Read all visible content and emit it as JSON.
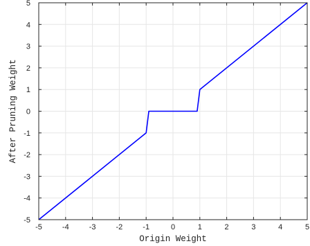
{
  "chart_data": {
    "type": "line",
    "xlabel": "Origin Weight",
    "ylabel": "After Pruning Weight",
    "xlim": [
      -5,
      5
    ],
    "ylim": [
      -5,
      5
    ],
    "xticks": [
      -5,
      -4,
      -3,
      -2,
      -1,
      0,
      1,
      2,
      3,
      4,
      5
    ],
    "yticks": [
      -5,
      -4,
      -3,
      -2,
      -1,
      0,
      1,
      2,
      3,
      4,
      5
    ],
    "grid": true,
    "series": [
      {
        "color": "#0000ff",
        "x": [
          -5,
          -1,
          -0.9,
          0.9,
          1,
          5
        ],
        "y": [
          -5,
          -1,
          0,
          0,
          1,
          5
        ]
      }
    ]
  }
}
